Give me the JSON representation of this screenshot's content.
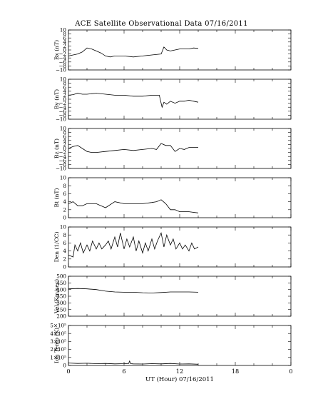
{
  "title": "ACE Satellite Observational Data   07/16/2011",
  "xlabel": "UT (Hour)   07/16/2011",
  "chart_data": {
    "type": "line",
    "title": "ACE Satellite Observational Data   07/16/2011",
    "xlabel": "UT (Hour)   07/16/2011",
    "x_ticks": [
      "0",
      "6",
      "12",
      "18",
      "0"
    ],
    "xlim": [
      0,
      24
    ],
    "panels": [
      {
        "ylabel": "Bx (nT)",
        "ylim": [
          -10,
          10
        ],
        "ticks": [
          -10,
          -8,
          -6,
          -4,
          -2,
          0,
          2,
          4,
          6,
          8,
          10
        ],
        "tick_labels": [
          "−10",
          "−8",
          "−6",
          "−4",
          "−2",
          "0",
          "2",
          "4",
          "6",
          "8",
          "10"
        ],
        "label_values": [
          -10,
          -6,
          -2,
          2,
          6,
          10
        ],
        "series": [
          {
            "x": [
              0,
              0.5,
              1,
              1.5,
              2,
              2.5,
              3,
              3.5,
              4,
              4.5,
              5,
              6,
              7,
              8,
              9,
              10,
              10.3,
              10.6,
              11,
              11.5,
              12,
              12.5,
              13,
              13.5,
              14
            ],
            "y": [
              -3,
              -2.5,
              -2,
              -1,
              1,
              0.5,
              -0.5,
              -1.5,
              -3,
              -3.5,
              -3,
              -3,
              -3.5,
              -3,
              -2.5,
              -2,
              1.5,
              0,
              -0.5,
              0,
              0.5,
              0.5,
              0.5,
              1,
              0.8
            ]
          }
        ]
      },
      {
        "ylabel": "By (nT)",
        "ylim": [
          -10,
          10
        ],
        "ticks": [
          -10,
          -8,
          -6,
          -4,
          -2,
          0,
          2,
          4,
          6,
          8,
          10
        ],
        "tick_labels": [
          "−10",
          "−8",
          "−6",
          "−4",
          "−2",
          "0",
          "2",
          "4",
          "6",
          "8",
          "10"
        ],
        "label_values": [
          -10,
          -6,
          -2,
          2,
          6,
          10
        ],
        "series": [
          {
            "x": [
              0,
              0.5,
              1,
              1.5,
              2,
              3,
              4,
              5,
              6,
              7,
              8,
              9,
              9.8,
              10.1,
              10.3,
              10.6,
              11,
              11.5,
              12,
              12.5,
              13,
              13.5,
              14
            ],
            "y": [
              2,
              2.3,
              3,
              2.5,
              2.5,
              3,
              2.5,
              2,
              2,
              1.5,
              1.5,
              2,
              2,
              -4,
              -1.5,
              -2.5,
              -1,
              -2,
              -1,
              -1,
              -0.5,
              -1,
              -1.5
            ]
          }
        ]
      },
      {
        "ylabel": "Bz (nT)",
        "ylim": [
          -10,
          10
        ],
        "ticks": [
          -10,
          -8,
          -6,
          -4,
          -2,
          0,
          2,
          4,
          6,
          8,
          10
        ],
        "tick_labels": [
          "−10",
          "−8",
          "−6",
          "−4",
          "−2",
          "0",
          "2",
          "4",
          "6",
          "8",
          "10"
        ],
        "label_values": [
          -10,
          -6,
          -2,
          2,
          6,
          10
        ],
        "series": [
          {
            "x": [
              0,
              0.5,
              1,
              1.5,
              2,
              2.5,
              3,
              4,
              5,
              6,
              7,
              8,
              9,
              9.5,
              10,
              10.5,
              11,
              11.5,
              12,
              12.5,
              13,
              14
            ],
            "y": [
              0,
              1,
              1.5,
              0,
              -1.5,
              -2,
              -2,
              -1.5,
              -1,
              -0.5,
              -1,
              -0.5,
              0,
              -0.5,
              2.5,
              1.5,
              1.5,
              -1.5,
              0,
              -0.5,
              0.5,
              0.5
            ]
          }
        ]
      },
      {
        "ylabel": "Bt (nT)",
        "ylim": [
          0,
          10
        ],
        "ticks": [
          0,
          2,
          4,
          6,
          8,
          10
        ],
        "tick_labels": [
          "0",
          "2",
          "4",
          "6",
          "8",
          "10"
        ],
        "label_values": [
          0,
          2,
          4,
          6,
          8,
          10
        ],
        "series": [
          {
            "x": [
              0,
              0.5,
              1,
              1.5,
              2,
              3,
              4,
              5,
              6,
              7,
              8,
              9,
              9.5,
              10,
              10.5,
              11,
              11.5,
              12,
              13,
              14
            ],
            "y": [
              3.5,
              4,
              3,
              3,
              3.5,
              3.5,
              2.5,
              4,
              3.5,
              3.5,
              3.5,
              3.8,
              4,
              4.5,
              3.5,
              2,
              2,
              1.5,
              1.5,
              1.2
            ]
          }
        ]
      },
      {
        "ylabel": "Den (1/CC)",
        "ylim": [
          0,
          10
        ],
        "ticks": [
          0,
          2,
          4,
          6,
          8,
          10
        ],
        "tick_labels": [
          "0",
          "2",
          "4",
          "6",
          "8",
          "10"
        ],
        "label_values": [
          0,
          2,
          4,
          6,
          8,
          10
        ],
        "series": [
          {
            "x": [
              0,
              0.5,
              0.7,
              1,
              1.3,
              1.6,
              2,
              2.3,
              2.6,
              3,
              3.3,
              3.6,
              4,
              4.3,
              4.6,
              5,
              5.3,
              5.6,
              6,
              6.3,
              6.6,
              7,
              7.3,
              7.6,
              8,
              8.3,
              8.6,
              9,
              9.3,
              9.6,
              10,
              10.3,
              10.6,
              11,
              11.3,
              11.6,
              12,
              12.3,
              12.6,
              13,
              13.3,
              13.6,
              14
            ],
            "y": [
              3,
              2.5,
              5.5,
              4,
              6,
              3.5,
              5.5,
              4,
              6.5,
              4.5,
              6,
              4.5,
              5.5,
              6.5,
              4.5,
              7.5,
              5,
              8.5,
              4.5,
              7,
              5,
              7.5,
              4,
              6.5,
              3.5,
              6,
              4,
              7,
              4.5,
              6.5,
              8.5,
              5,
              8,
              5.5,
              7,
              4.5,
              6,
              4.5,
              5.5,
              4,
              6,
              4.5,
              5
            ]
          }
        ]
      },
      {
        "ylabel": "Vel (Km/sec)",
        "ylim": [
          200,
          500
        ],
        "ticks": [
          200,
          250,
          300,
          350,
          400,
          450,
          500
        ],
        "tick_labels": [
          "200",
          "250",
          "300",
          "350",
          "400",
          "450",
          "500"
        ],
        "label_values": [
          200,
          250,
          300,
          350,
          400,
          450,
          500
        ],
        "series": [
          {
            "x": [
              0,
              1,
              2,
              3,
              4,
              5,
              6,
              7,
              8,
              9,
              10,
              11,
              12,
              13,
              14
            ],
            "y": [
              405,
              408,
              405,
              400,
              388,
              382,
              380,
              380,
              376,
              374,
              378,
              382,
              382,
              382,
              380
            ]
          }
        ]
      },
      {
        "ylabel": "Ion Temp (K)",
        "ylim": [
          0,
          500000
        ],
        "ticks": [
          0,
          100000,
          200000,
          300000,
          400000,
          500000
        ],
        "tick_labels": [
          "0",
          "1×10⁵",
          "2×10⁵",
          "3×10⁵",
          "4×10⁵",
          "5×10⁵"
        ],
        "label_values": [
          0,
          100000,
          200000,
          300000,
          400000,
          500000
        ],
        "series": [
          {
            "x": [
              0,
              1,
              2,
              3,
              4,
              5,
              6,
              6.5,
              6.6,
              6.7,
              7,
              8,
              9,
              10,
              11,
              12,
              13,
              14
            ],
            "y": [
              30000,
              25000,
              28000,
              22000,
              25000,
              20000,
              22000,
              25000,
              55000,
              22000,
              20000,
              18000,
              22000,
              20000,
              25000,
              18000,
              20000,
              15000
            ]
          }
        ]
      }
    ]
  }
}
